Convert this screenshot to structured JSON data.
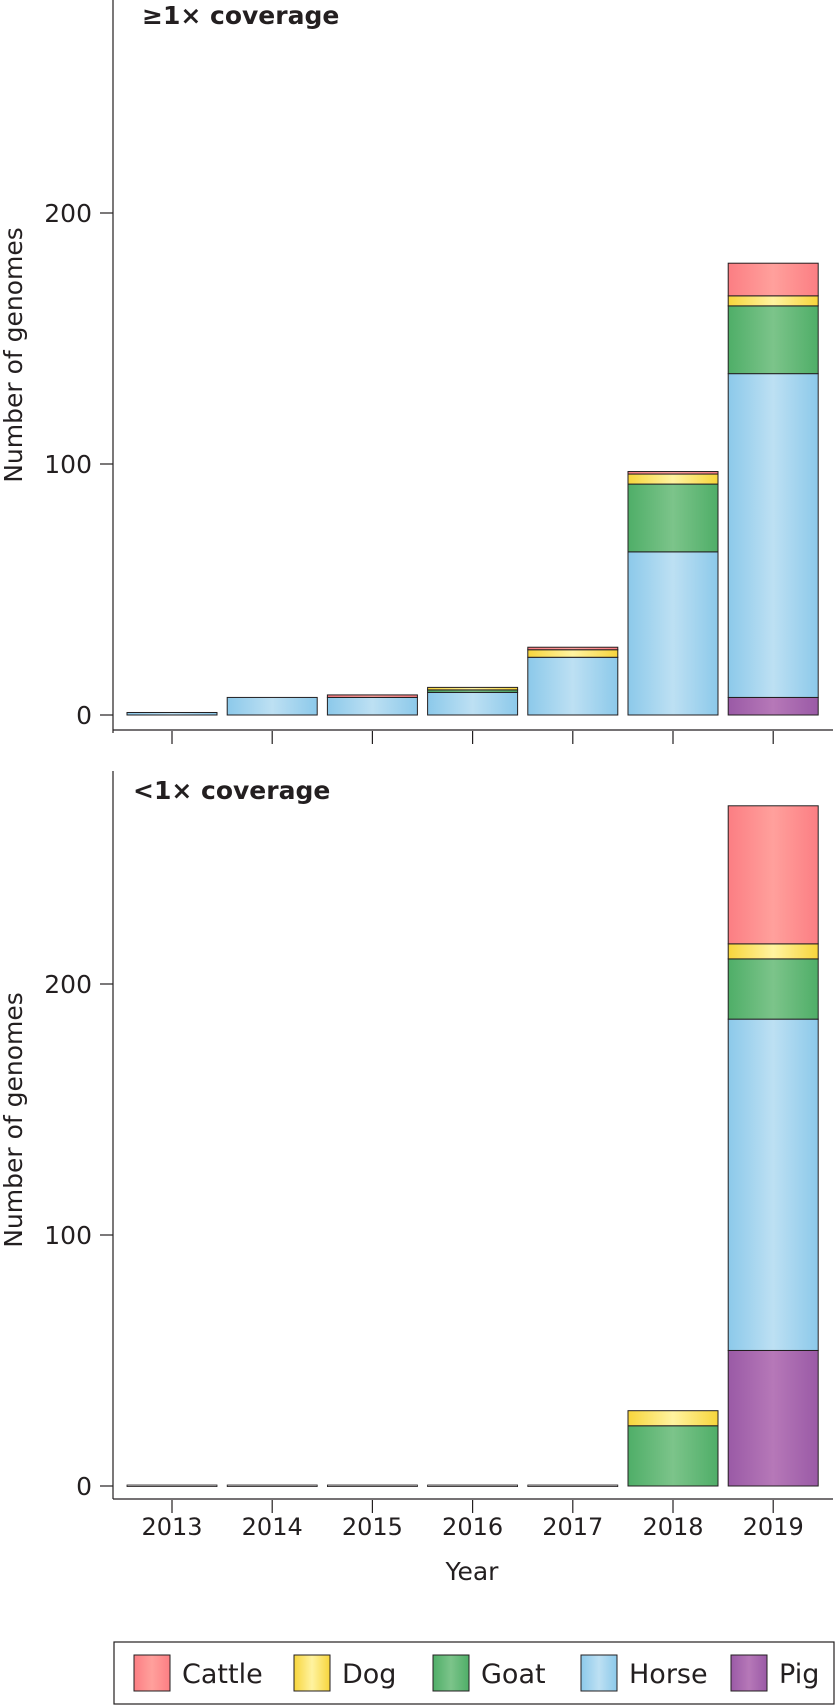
{
  "colors": {
    "Cattle": [
      "#fc7e83",
      "#ffa09c",
      "#fc7e83"
    ],
    "Dog": [
      "#f7d53c",
      "#fff3a0",
      "#f7d53c"
    ],
    "Goat": [
      "#4fae68",
      "#7cc48a",
      "#4fae68"
    ],
    "Horse": [
      "#8cc9ea",
      "#bde0f3",
      "#8cc9ea"
    ],
    "Pig": [
      "#9a5aa6",
      "#b678b8",
      "#9a5aa6"
    ]
  },
  "chart_data": [
    {
      "type": "bar",
      "stacked": true,
      "title": "≥1× coverage",
      "xlabel": "",
      "ylabel": "Number of genomes",
      "ylim": [
        0,
        285
      ],
      "yticks": [
        0,
        100,
        200
      ],
      "categories": [
        "2013",
        "2014",
        "2015",
        "2016",
        "2017",
        "2018",
        "2019"
      ],
      "series": [
        {
          "name": "Pig",
          "values": [
            0,
            0,
            0,
            0,
            0,
            0,
            7
          ]
        },
        {
          "name": "Horse",
          "values": [
            1,
            7,
            7,
            9,
            23,
            65,
            129
          ]
        },
        {
          "name": "Goat",
          "values": [
            0,
            0,
            0,
            1,
            0,
            27,
            27
          ]
        },
        {
          "name": "Dog",
          "values": [
            0,
            0,
            0,
            1,
            3,
            4,
            4
          ]
        },
        {
          "name": "Cattle",
          "values": [
            0,
            0,
            1,
            0,
            1,
            1,
            13
          ]
        }
      ]
    },
    {
      "type": "bar",
      "stacked": true,
      "title": "<1× coverage",
      "xlabel": "Year",
      "ylabel": "Number of genomes",
      "ylim": [
        0,
        285
      ],
      "yticks": [
        0,
        100,
        200
      ],
      "categories": [
        "2013",
        "2014",
        "2015",
        "2016",
        "2017",
        "2018",
        "2019"
      ],
      "series": [
        {
          "name": "Pig",
          "values": [
            0,
            0,
            0,
            0,
            0,
            0,
            54
          ]
        },
        {
          "name": "Horse",
          "values": [
            0,
            0,
            0,
            0,
            0,
            0,
            132
          ]
        },
        {
          "name": "Goat",
          "values": [
            0,
            0,
            0,
            0,
            0,
            24,
            24
          ]
        },
        {
          "name": "Dog",
          "values": [
            0,
            0,
            0,
            0,
            0,
            6,
            6
          ]
        },
        {
          "name": "Cattle",
          "values": [
            0,
            0,
            0,
            0,
            0,
            0,
            55
          ]
        }
      ]
    }
  ],
  "legend": {
    "items": [
      "Cattle",
      "Dog",
      "Goat",
      "Horse",
      "Pig"
    ]
  }
}
